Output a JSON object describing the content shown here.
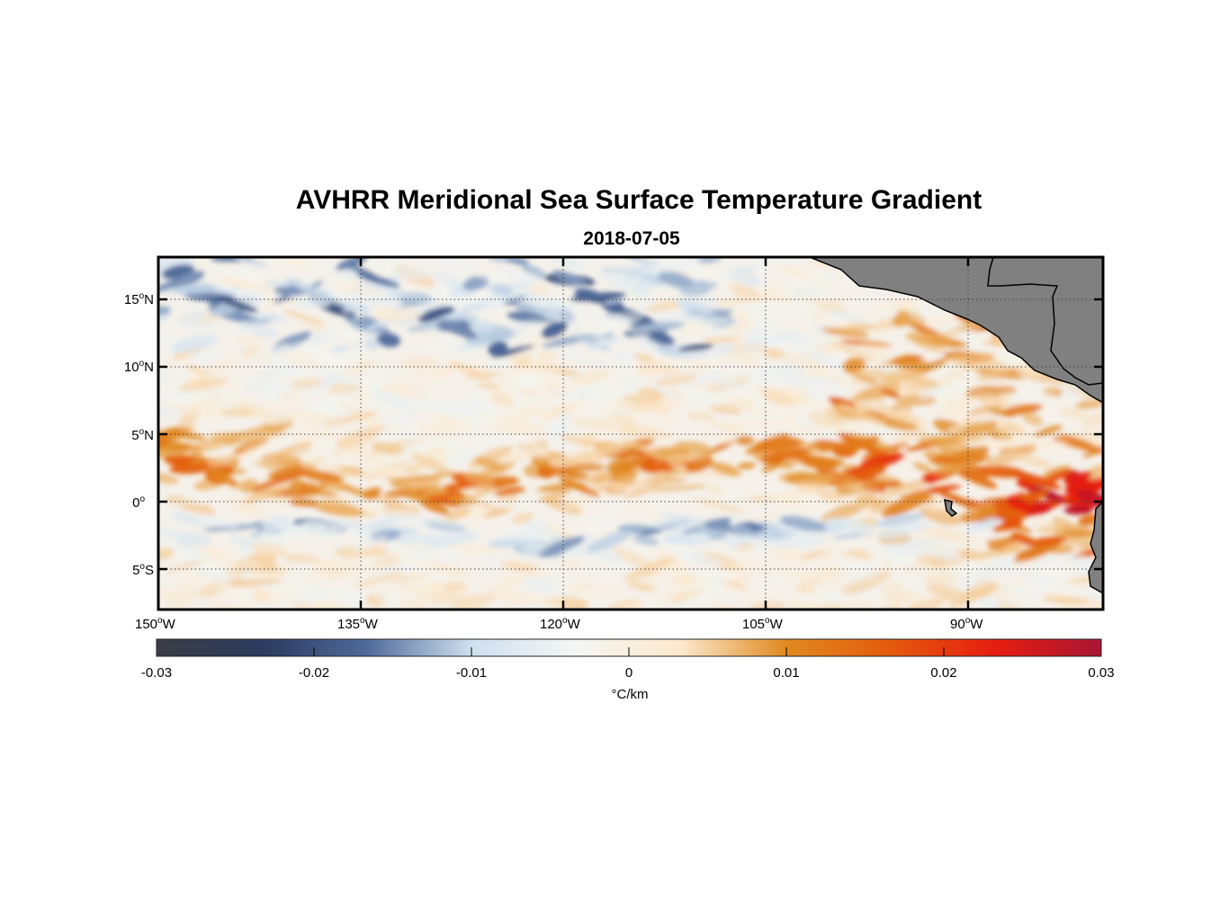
{
  "title": "AVHRR Meridional Sea Surface Temperature Gradient",
  "subtitle": "2018-07-05",
  "x_labels": [
    {
      "deg": "150",
      "hemi": "W"
    },
    {
      "deg": "135",
      "hemi": "W"
    },
    {
      "deg": "120",
      "hemi": "W"
    },
    {
      "deg": "105",
      "hemi": "W"
    },
    {
      "deg": "90",
      "hemi": "W"
    }
  ],
  "y_labels": [
    {
      "deg": "15",
      "hemi": "N"
    },
    {
      "deg": "10",
      "hemi": "N"
    },
    {
      "deg": "5",
      "hemi": "N"
    },
    {
      "deg": "0",
      "hemi": ""
    },
    {
      "deg": "5",
      "hemi": "S"
    }
  ],
  "degree_symbol": "o",
  "colorbar": {
    "ticks": [
      "-0.03",
      "-0.02",
      "-0.01",
      "0",
      "0.01",
      "0.02",
      "0.03"
    ],
    "units": "°C/km",
    "range": [
      -0.03,
      0.03
    ],
    "colors": [
      "#3a3d45",
      "#2b3a5e",
      "#4f6a9a",
      "#cfe0ef",
      "#f4f6f2",
      "#fde8cc",
      "#e08a20",
      "#e55a0d",
      "#e61d10",
      "#a81634"
    ]
  },
  "chart_data": {
    "type": "heatmap",
    "variable": "meridional SST gradient",
    "units": "°C/km",
    "date": "2018-07-05",
    "lon_range": [
      -150,
      -80
    ],
    "lat_range": [
      -8,
      18
    ],
    "value_range": [
      -0.03,
      0.03
    ],
    "features": [
      {
        "name": "equatorial positive band",
        "lon_range": [
          -150,
          -80
        ],
        "lat": 2,
        "value": 0.012
      },
      {
        "name": "equatorial negative cold tongue edge",
        "lon_range": [
          -140,
          -95
        ],
        "lat": -2,
        "value": -0.012
      },
      {
        "name": "northern negative eddies",
        "lon_range": [
          -150,
          -110
        ],
        "lat": 15,
        "value": -0.02
      },
      {
        "name": "eastern positive maximum",
        "lon_range": [
          -92,
          -80
        ],
        "lat": -1,
        "value": 0.022
      }
    ],
    "land": [
      "Central America",
      "South America coast",
      "Galapagos Islands"
    ]
  }
}
